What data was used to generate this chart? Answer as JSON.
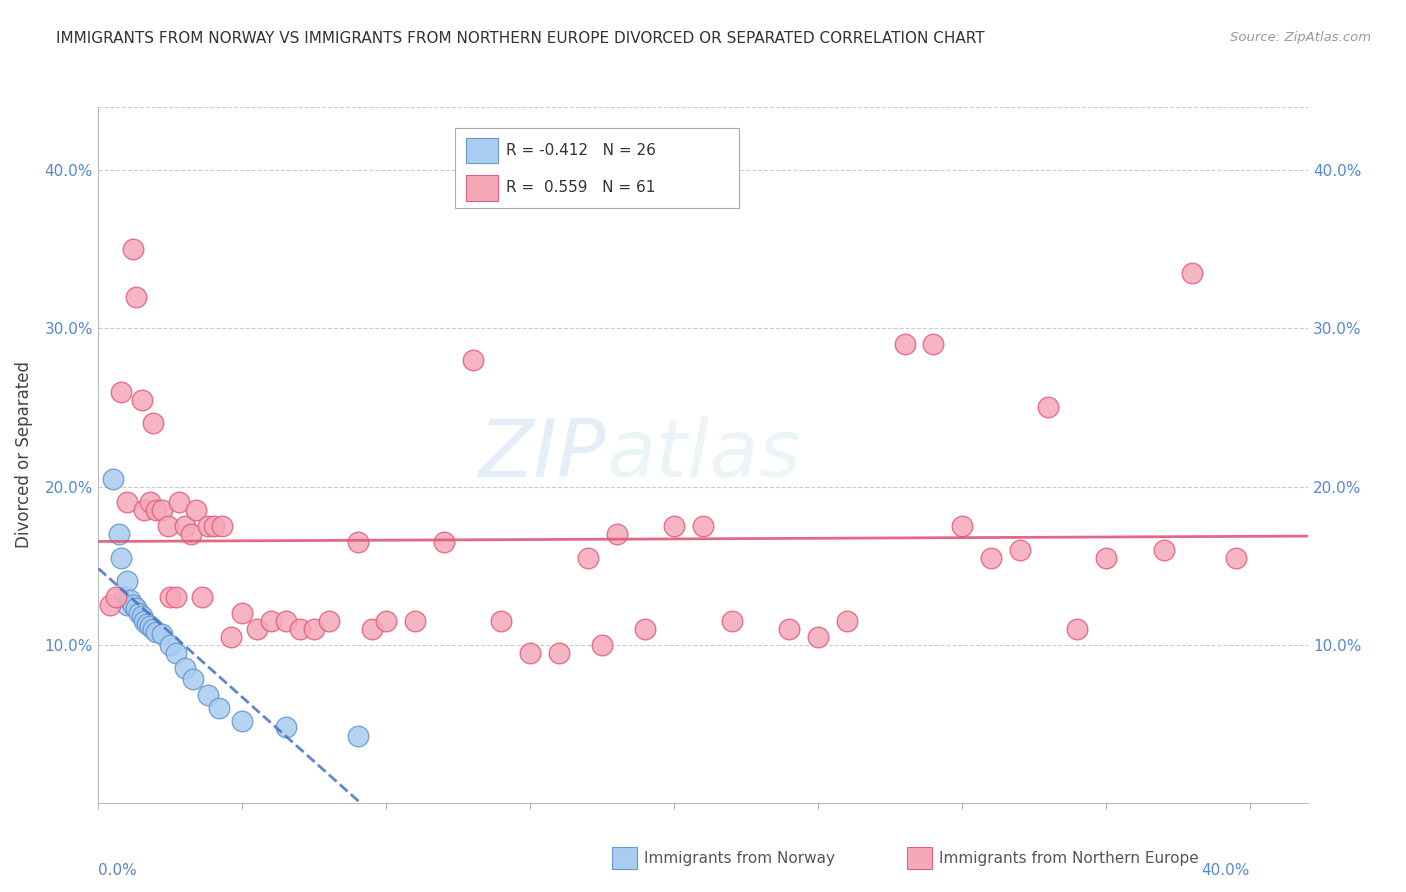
{
  "title": "IMMIGRANTS FROM NORWAY VS IMMIGRANTS FROM NORTHERN EUROPE DIVORCED OR SEPARATED CORRELATION CHART",
  "source": "Source: ZipAtlas.com",
  "ylabel": "Divorced or Separated",
  "xlim": [
    0.0,
    0.42
  ],
  "ylim": [
    0.0,
    0.44
  ],
  "yticks": [
    0.1,
    0.2,
    0.3,
    0.4
  ],
  "xticks": [
    0.0,
    0.05,
    0.1,
    0.15,
    0.2,
    0.25,
    0.3,
    0.35,
    0.4
  ],
  "watermark": "ZIPatlas",
  "legend_r1": "R = -0.412",
  "legend_n1": "N = 26",
  "legend_r2": "R =  0.559",
  "legend_n2": "N = 61",
  "norway_color": "#aaccf0",
  "norway_edge": "#6699cc",
  "northern_europe_color": "#f5a8b8",
  "northern_europe_edge": "#e06080",
  "norway_line_color": "#4472c4",
  "northern_europe_line_color": "#e05878",
  "background_color": "#ffffff",
  "grid_color": "#cccccc",
  "norway_scatter_x": [
    0.005,
    0.007,
    0.008,
    0.009,
    0.01,
    0.01,
    0.011,
    0.012,
    0.013,
    0.014,
    0.015,
    0.016,
    0.017,
    0.018,
    0.019,
    0.02,
    0.022,
    0.025,
    0.027,
    0.03,
    0.033,
    0.038,
    0.042,
    0.05,
    0.065,
    0.09
  ],
  "norway_scatter_y": [
    0.205,
    0.17,
    0.155,
    0.13,
    0.14,
    0.125,
    0.128,
    0.125,
    0.123,
    0.12,
    0.118,
    0.115,
    0.113,
    0.112,
    0.11,
    0.108,
    0.107,
    0.1,
    0.095,
    0.085,
    0.078,
    0.068,
    0.06,
    0.052,
    0.048,
    0.042
  ],
  "northern_europe_scatter_x": [
    0.004,
    0.006,
    0.008,
    0.01,
    0.012,
    0.013,
    0.015,
    0.016,
    0.018,
    0.019,
    0.02,
    0.022,
    0.024,
    0.025,
    0.027,
    0.028,
    0.03,
    0.032,
    0.034,
    0.036,
    0.038,
    0.04,
    0.043,
    0.046,
    0.05,
    0.055,
    0.06,
    0.065,
    0.07,
    0.075,
    0.08,
    0.09,
    0.095,
    0.1,
    0.11,
    0.12,
    0.13,
    0.14,
    0.15,
    0.16,
    0.17,
    0.175,
    0.18,
    0.19,
    0.2,
    0.21,
    0.22,
    0.24,
    0.25,
    0.26,
    0.28,
    0.29,
    0.3,
    0.31,
    0.32,
    0.33,
    0.34,
    0.35,
    0.37,
    0.38,
    0.395
  ],
  "northern_europe_scatter_y": [
    0.125,
    0.13,
    0.26,
    0.19,
    0.35,
    0.32,
    0.255,
    0.185,
    0.19,
    0.24,
    0.185,
    0.185,
    0.175,
    0.13,
    0.13,
    0.19,
    0.175,
    0.17,
    0.185,
    0.13,
    0.175,
    0.175,
    0.175,
    0.105,
    0.12,
    0.11,
    0.115,
    0.115,
    0.11,
    0.11,
    0.115,
    0.165,
    0.11,
    0.115,
    0.115,
    0.165,
    0.28,
    0.115,
    0.095,
    0.095,
    0.155,
    0.1,
    0.17,
    0.11,
    0.175,
    0.175,
    0.115,
    0.11,
    0.105,
    0.115,
    0.29,
    0.29,
    0.175,
    0.155,
    0.16,
    0.25,
    0.11,
    0.155,
    0.16,
    0.335,
    0.155
  ]
}
